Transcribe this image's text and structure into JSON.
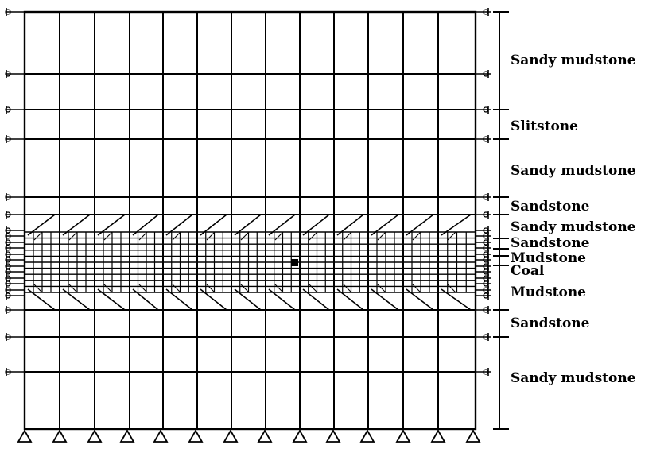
{
  "layers": [
    {
      "label": "Sandy mudstone"
    },
    {
      "label": "Slitstone"
    },
    {
      "label": "Sandy mudstone"
    },
    {
      "label": "Sandstone"
    },
    {
      "label": "Sandy mudstone"
    },
    {
      "label": "Sandstone"
    },
    {
      "label": "Mudstone"
    },
    {
      "label": "Coal"
    },
    {
      "label": "Mudstone"
    },
    {
      "label": "Sandstone"
    },
    {
      "label": "Sandy mudstone"
    }
  ],
  "colors": {
    "line": "#000000",
    "background": "#ffffff"
  },
  "icons": {
    "left_right_support": "roller-support-icon",
    "bottom_support": "pin-support-icon"
  }
}
